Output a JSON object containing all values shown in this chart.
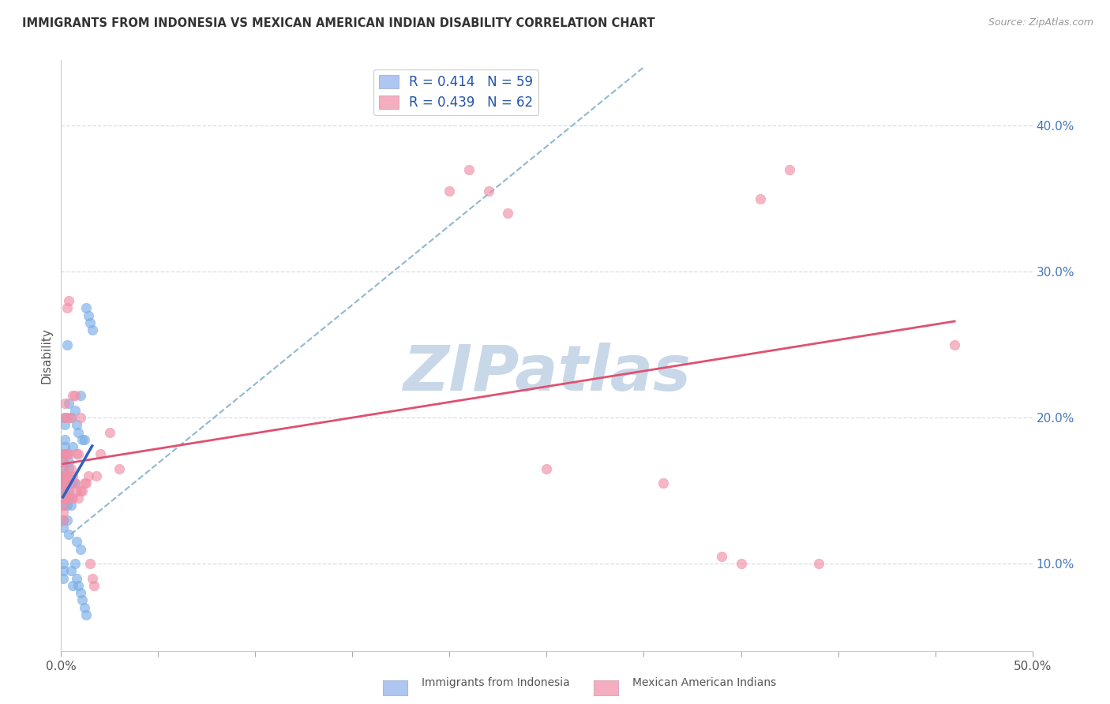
{
  "title": "IMMIGRANTS FROM INDONESIA VS MEXICAN AMERICAN INDIAN DISABILITY CORRELATION CHART",
  "source": "Source: ZipAtlas.com",
  "ylabel": "Disability",
  "right_yticks": [
    "10.0%",
    "20.0%",
    "30.0%",
    "40.0%"
  ],
  "right_ytick_vals": [
    0.1,
    0.2,
    0.3,
    0.4
  ],
  "xlim": [
    0.0,
    0.5
  ],
  "ylim": [
    0.04,
    0.445
  ],
  "legend_color1": "#aec6f0",
  "legend_color2": "#f4aec0",
  "scatter_color1": "#7aaee8",
  "scatter_color2": "#f090a8",
  "trendline1_color": "#3060c0",
  "trendline2_color": "#e05070",
  "dashed_line_color": "#90b8d0",
  "watermark_text": "ZIPatlas",
  "watermark_color": "#c8d8e8",
  "bg_color": "#ffffff",
  "label1": "Immigrants from Indonesia",
  "label2": "Mexican American Indians",
  "grid_color": "#d8dde8",
  "indonesia_x": [
    0.001,
    0.001,
    0.001,
    0.001,
    0.001,
    0.001,
    0.001,
    0.001,
    0.001,
    0.001,
    0.001,
    0.002,
    0.002,
    0.002,
    0.002,
    0.002,
    0.002,
    0.002,
    0.002,
    0.002,
    0.003,
    0.003,
    0.003,
    0.003,
    0.003,
    0.003,
    0.003,
    0.004,
    0.004,
    0.004,
    0.004,
    0.004,
    0.005,
    0.005,
    0.005,
    0.005,
    0.006,
    0.006,
    0.006,
    0.007,
    0.007,
    0.007,
    0.008,
    0.008,
    0.008,
    0.009,
    0.009,
    0.01,
    0.01,
    0.01,
    0.011,
    0.011,
    0.012,
    0.012,
    0.013,
    0.013,
    0.014,
    0.015,
    0.016
  ],
  "indonesia_y": [
    0.125,
    0.13,
    0.14,
    0.15,
    0.155,
    0.16,
    0.165,
    0.17,
    0.09,
    0.095,
    0.1,
    0.145,
    0.15,
    0.155,
    0.16,
    0.175,
    0.18,
    0.185,
    0.195,
    0.2,
    0.13,
    0.14,
    0.15,
    0.155,
    0.16,
    0.175,
    0.25,
    0.12,
    0.145,
    0.165,
    0.17,
    0.21,
    0.095,
    0.14,
    0.155,
    0.2,
    0.085,
    0.155,
    0.18,
    0.1,
    0.155,
    0.205,
    0.09,
    0.115,
    0.195,
    0.085,
    0.19,
    0.08,
    0.11,
    0.215,
    0.075,
    0.185,
    0.07,
    0.185,
    0.065,
    0.275,
    0.27,
    0.265,
    0.26
  ],
  "mexican_x": [
    0.001,
    0.001,
    0.001,
    0.001,
    0.001,
    0.001,
    0.001,
    0.001,
    0.001,
    0.001,
    0.002,
    0.002,
    0.002,
    0.002,
    0.002,
    0.002,
    0.003,
    0.003,
    0.003,
    0.003,
    0.003,
    0.004,
    0.004,
    0.004,
    0.004,
    0.005,
    0.005,
    0.005,
    0.006,
    0.006,
    0.006,
    0.007,
    0.007,
    0.008,
    0.008,
    0.009,
    0.009,
    0.01,
    0.01,
    0.011,
    0.012,
    0.013,
    0.014,
    0.015,
    0.016,
    0.017,
    0.018,
    0.02,
    0.025,
    0.03,
    0.2,
    0.21,
    0.22,
    0.23,
    0.25,
    0.31,
    0.34,
    0.35,
    0.36,
    0.375,
    0.39,
    0.46
  ],
  "mexican_y": [
    0.13,
    0.135,
    0.14,
    0.145,
    0.15,
    0.155,
    0.16,
    0.165,
    0.17,
    0.175,
    0.145,
    0.155,
    0.16,
    0.175,
    0.2,
    0.21,
    0.145,
    0.155,
    0.175,
    0.2,
    0.275,
    0.15,
    0.16,
    0.175,
    0.28,
    0.145,
    0.165,
    0.2,
    0.145,
    0.16,
    0.215,
    0.155,
    0.215,
    0.15,
    0.175,
    0.145,
    0.175,
    0.15,
    0.2,
    0.15,
    0.155,
    0.155,
    0.16,
    0.1,
    0.09,
    0.085,
    0.16,
    0.175,
    0.19,
    0.165,
    0.355,
    0.37,
    0.355,
    0.34,
    0.165,
    0.155,
    0.105,
    0.1,
    0.35,
    0.37,
    0.1,
    0.25
  ]
}
